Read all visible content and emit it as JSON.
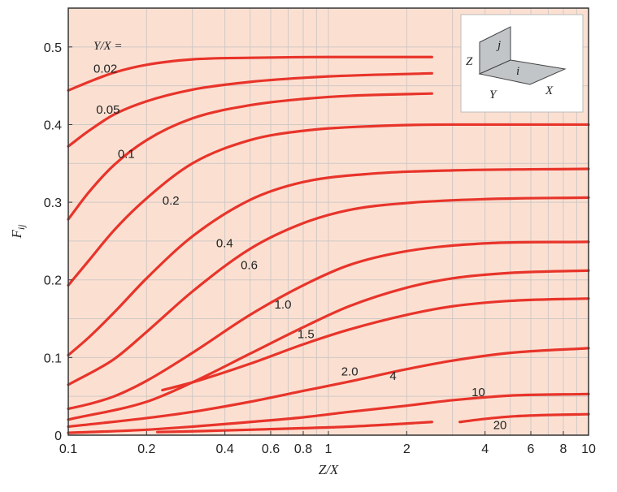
{
  "chart_data": {
    "type": "line",
    "xscale": "log",
    "xlim": [
      0.1,
      10
    ],
    "ylim": [
      0,
      0.55
    ],
    "xlabel": "Z/X",
    "ylabel": "F_ij",
    "xticks": [
      {
        "v": 0.1,
        "label": "0.1"
      },
      {
        "v": 0.2,
        "label": "0.2"
      },
      {
        "v": 0.4,
        "label": "0.4"
      },
      {
        "v": 0.6,
        "label": "0.6"
      },
      {
        "v": 0.8,
        "label": "0.8"
      },
      {
        "v": 1,
        "label": "1"
      },
      {
        "v": 2,
        "label": "2"
      },
      {
        "v": 4,
        "label": "4"
      },
      {
        "v": 6,
        "label": "6"
      },
      {
        "v": 8,
        "label": "8"
      },
      {
        "v": 10,
        "label": "10"
      }
    ],
    "yticks": [
      {
        "v": 0,
        "label": "0"
      },
      {
        "v": 0.1,
        "label": "0.1"
      },
      {
        "v": 0.2,
        "label": "0.2"
      },
      {
        "v": 0.3,
        "label": "0.3"
      },
      {
        "v": 0.4,
        "label": "0.4"
      },
      {
        "v": 0.5,
        "label": "0.5"
      }
    ],
    "legend_title": "Y/X =",
    "grid": true,
    "colors": {
      "background": "#fbe0d2",
      "grid": "#d0c8c4",
      "curve": "#e8342a",
      "frame": "#333333"
    },
    "series": [
      {
        "name": "0.02",
        "label_pos": [
          0.125,
          0.467
        ],
        "x": [
          0.1,
          0.12,
          0.15,
          0.2,
          0.3,
          0.5,
          1.0,
          2.5
        ],
        "y": [
          0.444,
          0.455,
          0.467,
          0.477,
          0.484,
          0.486,
          0.487,
          0.487
        ]
      },
      {
        "name": "0.05",
        "label_pos": [
          0.128,
          0.414
        ],
        "x": [
          0.1,
          0.12,
          0.15,
          0.2,
          0.3,
          0.5,
          1.0,
          2.5
        ],
        "y": [
          0.372,
          0.392,
          0.413,
          0.43,
          0.445,
          0.455,
          0.462,
          0.466
        ]
      },
      {
        "name": "0.1",
        "label_pos": [
          0.155,
          0.357
        ],
        "x": [
          0.1,
          0.12,
          0.15,
          0.2,
          0.3,
          0.5,
          0.8,
          1.2,
          2.5
        ],
        "y": [
          0.278,
          0.313,
          0.348,
          0.38,
          0.408,
          0.425,
          0.433,
          0.437,
          0.44
        ]
      },
      {
        "name": "0.2",
        "label_pos": [
          0.23,
          0.297
        ],
        "x": [
          0.1,
          0.12,
          0.15,
          0.2,
          0.3,
          0.5,
          0.8,
          1.5,
          3,
          10
        ],
        "y": [
          0.193,
          0.225,
          0.264,
          0.305,
          0.35,
          0.38,
          0.392,
          0.398,
          0.4,
          0.4
        ]
      },
      {
        "name": "0.4",
        "label_pos": [
          0.37,
          0.242
        ],
        "x": [
          0.1,
          0.12,
          0.15,
          0.2,
          0.3,
          0.5,
          0.8,
          1.5,
          3,
          10
        ],
        "y": [
          0.103,
          0.126,
          0.158,
          0.202,
          0.256,
          0.303,
          0.326,
          0.337,
          0.341,
          0.343
        ]
      },
      {
        "name": "0.6",
        "label_pos": [
          0.46,
          0.214
        ],
        "x": [
          0.1,
          0.15,
          0.2,
          0.3,
          0.5,
          0.8,
          1.2,
          2,
          4,
          10
        ],
        "y": [
          0.065,
          0.098,
          0.133,
          0.185,
          0.24,
          0.273,
          0.29,
          0.299,
          0.304,
          0.306
        ]
      },
      {
        "name": "1.0",
        "label_pos": [
          0.62,
          0.163
        ],
        "x": [
          0.1,
          0.12,
          0.15,
          0.2,
          0.3,
          0.5,
          0.8,
          1.2,
          2,
          4,
          10
        ],
        "y": [
          0.034,
          0.04,
          0.05,
          0.07,
          0.106,
          0.155,
          0.193,
          0.219,
          0.237,
          0.247,
          0.249
        ]
      },
      {
        "name": "1.5",
        "label_pos": [
          0.76,
          0.125
        ],
        "x": [
          0.1,
          0.2,
          0.3,
          0.5,
          0.8,
          1.2,
          2,
          3,
          5,
          10
        ],
        "y": [
          0.02,
          0.043,
          0.068,
          0.105,
          0.139,
          0.166,
          0.19,
          0.202,
          0.209,
          0.212
        ]
      },
      {
        "name": "2.0",
        "label_pos": [
          1.12,
          0.077
        ],
        "x": [
          0.23,
          0.3,
          0.5,
          0.8,
          1.2,
          2,
          3,
          5,
          10
        ],
        "y": [
          0.058,
          0.068,
          0.092,
          0.117,
          0.136,
          0.155,
          0.166,
          0.173,
          0.176
        ]
      },
      {
        "name": "4",
        "label_pos": [
          1.72,
          0.071
        ],
        "x": [
          0.1,
          0.2,
          0.3,
          0.5,
          0.8,
          1.2,
          2,
          3,
          5,
          10
        ],
        "y": [
          0.011,
          0.022,
          0.03,
          0.043,
          0.057,
          0.069,
          0.085,
          0.096,
          0.106,
          0.112
        ]
      },
      {
        "name": "10",
        "label_pos": [
          3.55,
          0.05
        ],
        "x": [
          0.1,
          0.2,
          0.3,
          0.5,
          0.8,
          1.2,
          2,
          3,
          5,
          10
        ],
        "y": [
          0.003,
          0.007,
          0.011,
          0.017,
          0.023,
          0.03,
          0.038,
          0.045,
          0.051,
          0.053
        ]
      },
      {
        "name": "20",
        "label_pos": [
          4.3,
          0.008
        ],
        "x": [
          3.2,
          4,
          5,
          7,
          10
        ],
        "y": [
          0.017,
          0.021,
          0.024,
          0.026,
          0.027
        ]
      },
      {
        "name": "",
        "x": [
          0.22,
          0.3,
          0.5,
          0.8,
          1.2,
          2,
          2.5
        ],
        "y": [
          0.004,
          0.005,
          0.007,
          0.009,
          0.011,
          0.015,
          0.017
        ]
      }
    ],
    "inset": {
      "labels": {
        "j": "j",
        "i": "i",
        "z": "Z",
        "y": "Y",
        "x": "X"
      }
    }
  }
}
